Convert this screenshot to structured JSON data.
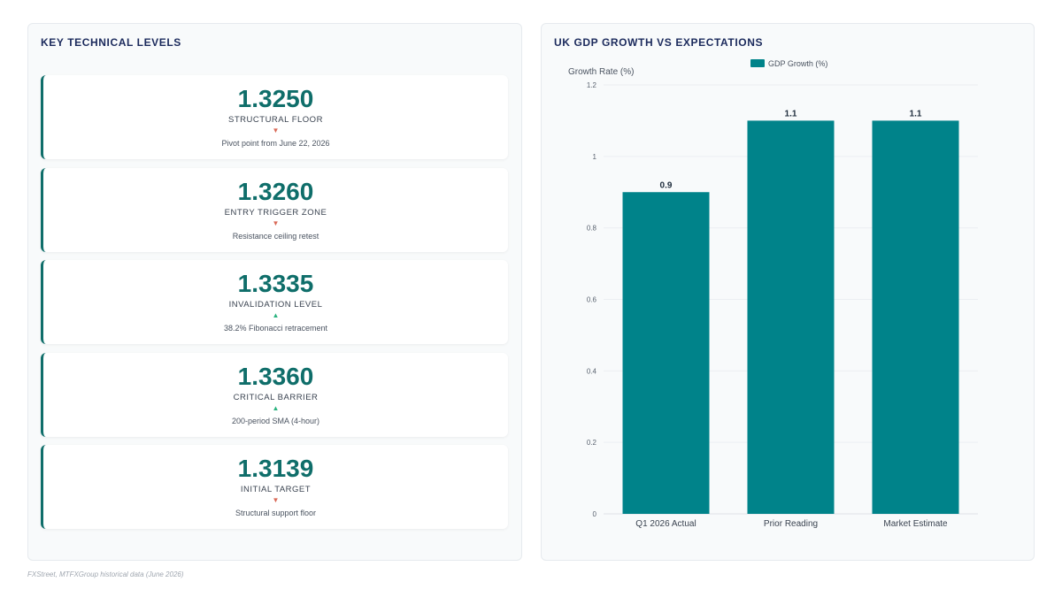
{
  "left_panel": {
    "title": "KEY TECHNICAL LEVELS",
    "levels": [
      {
        "value": "1.3250",
        "label": "STRUCTURAL FLOOR",
        "direction": "down",
        "arrow": "▼",
        "note": "Pivot point from June 22, 2026"
      },
      {
        "value": "1.3260",
        "label": "ENTRY TRIGGER ZONE",
        "direction": "down",
        "arrow": "▼",
        "note": "Resistance ceiling retest"
      },
      {
        "value": "1.3335",
        "label": "INVALIDATION LEVEL",
        "direction": "up",
        "arrow": "▲",
        "note": "38.2% Fibonacci retracement"
      },
      {
        "value": "1.3360",
        "label": "CRITICAL BARRIER",
        "direction": "up",
        "arrow": "▲",
        "note": "200-period SMA (4-hour)"
      },
      {
        "value": "1.3139",
        "label": "INITIAL TARGET",
        "direction": "down",
        "arrow": "▼",
        "note": "Structural support floor"
      }
    ]
  },
  "right_panel": {
    "title": "UK GDP GROWTH VS EXPECTATIONS"
  },
  "chart_data": {
    "type": "bar",
    "title": "UK GDP GROWTH VS EXPECTATIONS",
    "categories": [
      "Q1 2026 Actual",
      "Prior Reading",
      "Market Estimate"
    ],
    "series": [
      {
        "name": "GDP Growth (%)",
        "values": [
          0.9,
          1.1,
          1.1
        ],
        "color": "#00838a"
      }
    ],
    "ylabel": "Growth Rate (%)",
    "xlabel": "",
    "ylim": [
      0,
      1.2
    ],
    "yticks": [
      "0",
      "0.2",
      "0.4",
      "0.6",
      "0.8",
      "1",
      "1.2"
    ],
    "data_labels": true,
    "legend_position": "top",
    "grid": true
  },
  "source": "FXStreet, MTFXGroup historical data (June 2026)",
  "colors": {
    "accent": "#0f6e6a",
    "bar": "#00838a",
    "down": "#d96a58",
    "up": "#2ab37f",
    "title": "#1b2a5c"
  }
}
